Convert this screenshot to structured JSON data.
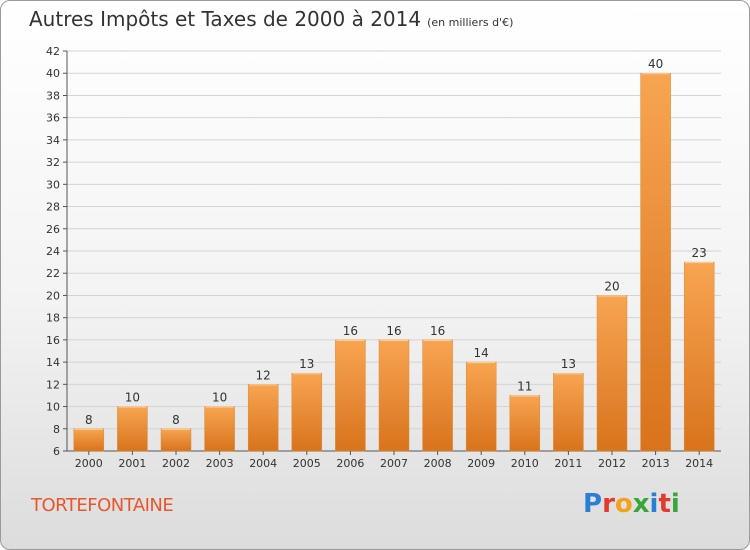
{
  "header": {
    "title": "Autres Impôts et Taxes de 2000 à 2014",
    "subtitle": "(en milliers d'€)"
  },
  "commune": "TORTEFONTAINE",
  "logo": {
    "text": "Proxiti",
    "colors": [
      "#2a7fd4",
      "#e23b2e",
      "#f2a31b",
      "#3aa63a",
      "#2a7fd4",
      "#e23b2e",
      "#3aa63a"
    ]
  },
  "chart_data": {
    "type": "bar",
    "title": "Autres Impôts et Taxes de 2000 à 2014",
    "subtitle": "(en milliers d'€)",
    "categories": [
      "2000",
      "2001",
      "2002",
      "2003",
      "2004",
      "2005",
      "2006",
      "2007",
      "2008",
      "2009",
      "2010",
      "2011",
      "2012",
      "2013",
      "2014"
    ],
    "values": [
      8,
      10,
      8,
      10,
      12,
      13,
      16,
      16,
      16,
      14,
      11,
      13,
      20,
      40,
      23
    ],
    "ylim": [
      6,
      42
    ],
    "yticks": [
      6,
      8,
      10,
      12,
      14,
      16,
      18,
      20,
      22,
      24,
      26,
      28,
      30,
      32,
      34,
      36,
      38,
      40,
      42
    ],
    "grid": true,
    "bar_color": "#f0922e"
  }
}
